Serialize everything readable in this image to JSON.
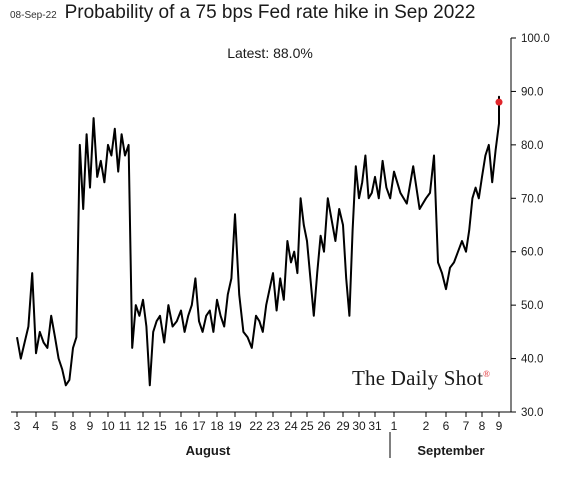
{
  "header": {
    "date_stamp": "08-Sep-22",
    "latest_label": "Latest:  88.0%",
    "brand": "The Daily Shot",
    "brand_mark": "®"
  },
  "chart_data": {
    "type": "line",
    "title": "Probability of a 75 bps Fed rate hike in Sep 2022",
    "xlabel": "",
    "ylabel": "",
    "ylim": [
      30,
      100
    ],
    "y_ticks": [
      "30.0",
      "40.0",
      "50.0",
      "60.0",
      "70.0",
      "80.0",
      "90.0",
      "100.0"
    ],
    "x_tick_labels": [
      "3",
      "4",
      "5",
      "8",
      "9",
      "10",
      "11",
      "12",
      "15",
      "16",
      "17",
      "18",
      "19",
      "22",
      "23",
      "24",
      "25",
      "26",
      "29",
      "30",
      "31",
      "1",
      "2",
      "6",
      "7",
      "8",
      "9"
    ],
    "month_labels": [
      "August",
      "September"
    ],
    "grid": false,
    "line_color": "#000000",
    "latest_marker_color": "#e0262b",
    "latest_value": 88.0,
    "series": [
      {
        "x": [
          0,
          0.2,
          0.4,
          0.6,
          0.8,
          1.0,
          1.2,
          1.4,
          1.6,
          1.8,
          2.0,
          2.2,
          2.4,
          2.6,
          2.8,
          3.0,
          3.2,
          3.4,
          3.6,
          3.8,
          4.0,
          4.2,
          4.4,
          4.6,
          4.8,
          5.0,
          5.2,
          5.4,
          5.6,
          5.8,
          6.0,
          6.2,
          6.4,
          6.6,
          6.8,
          7.0,
          7.2,
          7.4,
          7.6,
          7.8,
          8.0,
          8.2,
          8.4,
          8.6,
          8.8,
          9.0,
          9.2,
          9.4,
          9.6,
          9.8,
          10.0,
          10.2,
          10.4,
          10.6,
          10.8,
          11.0,
          11.2,
          11.4,
          11.6,
          11.8,
          12.0,
          12.2,
          12.4,
          12.6,
          12.8,
          13.0,
          13.2,
          13.4,
          13.6,
          13.8,
          14.0,
          14.2,
          14.4,
          14.6,
          14.8,
          15.0,
          15.2,
          15.4,
          15.6,
          15.8,
          16.0,
          16.2,
          16.4,
          16.6,
          16.8,
          17.0,
          17.2,
          17.4,
          17.6,
          17.8,
          18.0,
          18.2,
          18.4,
          18.6,
          18.8,
          19.0,
          19.2,
          19.4,
          19.6,
          19.8,
          20.0,
          20.2,
          20.4,
          20.6,
          20.8,
          21.0,
          21.2,
          21.4,
          21.6,
          21.8,
          22.0,
          22.2,
          22.4,
          22.6,
          22.8,
          23.0,
          23.2,
          23.4,
          23.6,
          23.8,
          24.0,
          24.2,
          24.4,
          24.6,
          24.8,
          25.0,
          25.2,
          25.4,
          25.6,
          25.8,
          26.0,
          26.2,
          26.4,
          26.6
        ],
        "values": [
          44,
          40,
          43,
          46,
          56,
          41,
          45,
          43,
          42,
          48,
          44,
          40,
          38,
          35,
          36,
          42,
          44,
          80,
          68,
          82,
          72,
          85,
          74,
          77,
          73,
          80,
          78,
          83,
          75,
          82,
          78,
          80,
          42,
          50,
          48,
          51,
          46,
          35,
          45,
          47,
          48,
          43,
          50,
          46,
          47,
          49,
          45,
          48,
          50,
          55,
          47,
          45,
          48,
          49,
          45,
          51,
          48,
          46,
          52,
          55,
          67,
          52,
          45,
          44,
          42,
          48,
          47,
          45,
          50,
          53,
          56,
          49,
          55,
          51,
          62,
          58,
          60,
          56,
          70,
          65,
          62,
          55,
          48,
          56,
          63,
          60,
          70,
          66,
          62,
          68,
          65,
          55,
          48,
          64,
          76,
          70,
          73,
          78,
          70,
          71,
          74,
          70,
          77,
          72,
          70,
          75,
          71,
          69,
          76,
          68,
          70,
          71,
          78,
          58,
          56,
          53,
          57,
          58,
          60,
          62,
          60,
          64,
          70,
          72,
          70,
          74,
          78,
          80,
          73,
          79,
          84,
          88,
          89,
          88
        ]
      }
    ]
  }
}
